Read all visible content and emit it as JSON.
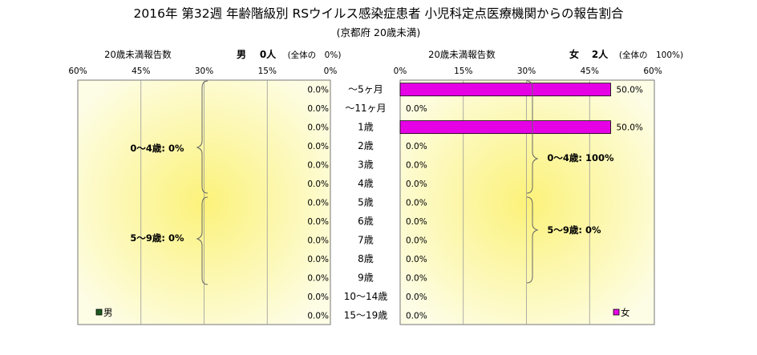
{
  "title": "2016年 第32週 年齢階級別 RSウイルス感染症患者 小児科定点医療機関からの報告割合",
  "subtitle": "(京都府 20歳未満)",
  "left_panel": {
    "section_label": "20歳未満報告数",
    "sex_label": "男",
    "count_text": "0人",
    "share_text": "(全体の　0%)",
    "legend_label": "男",
    "groups": [
      {
        "label": "0～4歳: 0%"
      },
      {
        "label": "5～9歳: 0%"
      }
    ]
  },
  "right_panel": {
    "section_label": "20歳未満報告数",
    "sex_label": "女",
    "count_text": "2人",
    "share_text": "(全体の　100%)",
    "legend_label": "女",
    "groups": [
      {
        "label": "0～4歳: 100%"
      },
      {
        "label": "5～9歳: 0%"
      }
    ]
  },
  "colors": {
    "male": "#1f5c1f",
    "female": "#e600e6",
    "gradient_center": "#fcf27a",
    "gradient_edge": "#fdfde6"
  },
  "chart_data": [
    {
      "type": "bar",
      "orientation": "horizontal-reversed",
      "name": "男",
      "categories": [
        "～5ヶ月",
        "～11ヶ月",
        "1歳",
        "2歳",
        "3歳",
        "4歳",
        "5歳",
        "6歳",
        "7歳",
        "8歳",
        "9歳",
        "10～14歳",
        "15～19歳"
      ],
      "values": [
        0,
        0,
        0,
        0,
        0,
        0,
        0,
        0,
        0,
        0,
        0,
        0,
        0
      ],
      "value_labels": [
        "0.0%",
        "0.0%",
        "0.0%",
        "0.0%",
        "0.0%",
        "0.0%",
        "0.0%",
        "0.0%",
        "0.0%",
        "0.0%",
        "0.0%",
        "0.0%",
        "0.0%"
      ],
      "xlim": [
        0,
        60
      ],
      "xticks": [
        "60%",
        "45%",
        "30%",
        "15%",
        "0%"
      ],
      "grid": true
    },
    {
      "type": "bar",
      "orientation": "horizontal",
      "name": "女",
      "categories": [
        "～5ヶ月",
        "～11ヶ月",
        "1歳",
        "2歳",
        "3歳",
        "4歳",
        "5歳",
        "6歳",
        "7歳",
        "8歳",
        "9歳",
        "10～14歳",
        "15～19歳"
      ],
      "values": [
        50,
        0,
        50,
        0,
        0,
        0,
        0,
        0,
        0,
        0,
        0,
        0,
        0
      ],
      "value_labels": [
        "50.0%",
        "0.0%",
        "50.0%",
        "0.0%",
        "0.0%",
        "0.0%",
        "0.0%",
        "0.0%",
        "0.0%",
        "0.0%",
        "0.0%",
        "0.0%",
        "0.0%"
      ],
      "xlim": [
        0,
        60
      ],
      "xticks": [
        "0%",
        "15%",
        "30%",
        "45%",
        "60%"
      ],
      "grid": true
    }
  ]
}
